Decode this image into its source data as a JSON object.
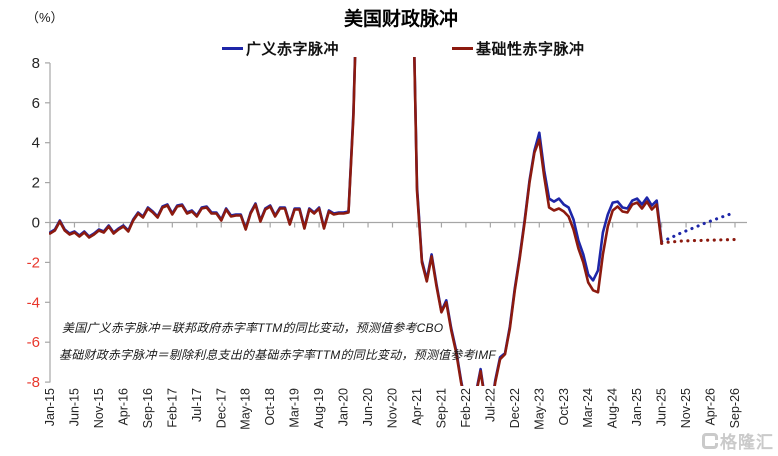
{
  "header": {
    "unit_label": "（%）",
    "title": "美国财政脉冲"
  },
  "legend": [
    {
      "label": "广义赤字脉冲",
      "color": "#1E26A8"
    },
    {
      "label": "基础性赤字脉冲",
      "color": "#8C1A0F"
    }
  ],
  "footnotes": [
    "美国广义赤字脉冲＝联邦政府赤字率TTM的同比变动，预测值参考CBO",
    "基础财政赤字脉冲＝剔除利息支出的基础赤字率TTM的同比变动，预测值参考IMF"
  ],
  "watermark": {
    "text": "格隆汇"
  },
  "chart_data": {
    "type": "line",
    "title": "美国财政脉冲",
    "unit": "%",
    "x_frequency": "monthly",
    "x_start": "Jan-15",
    "x_end": "Sep-26",
    "x_tick_labels": [
      "Jan-15",
      "Jun-15",
      "Nov-15",
      "Apr-16",
      "Sep-16",
      "Feb-17",
      "Jul-17",
      "Dec-17",
      "May-18",
      "Oct-18",
      "Mar-19",
      "Aug-19",
      "Jan-20",
      "Jun-20",
      "Nov-20",
      "Apr-21",
      "Sep-21",
      "Feb-22",
      "Jul-22",
      "Dec-22",
      "May-23",
      "Oct-23",
      "Mar-24",
      "Aug-24",
      "Jan-25",
      "Jun-25",
      "Nov-25",
      "Apr-26",
      "Sep-26"
    ],
    "ylim": [
      -8,
      8
    ],
    "y_ticks": [
      8,
      6,
      4,
      2,
      0,
      -2,
      -4,
      -6,
      -8
    ],
    "axis_color": "#A6A6A6",
    "tick_label_color": "#262626",
    "negative_tick_color": "#E8372C",
    "legend_position": "top",
    "grid": false,
    "clip_note": "values beyond ±8 run off the plot (COVID period)",
    "forecast_start_label": "Jun-25",
    "forecast_start_index": 125,
    "series": [
      {
        "name": "广义赤字脉冲",
        "color": "#1E26A8",
        "style": "solid, dotted forecast",
        "values": [
          -0.5,
          -0.35,
          0.1,
          -0.35,
          -0.55,
          -0.45,
          -0.65,
          -0.45,
          -0.7,
          -0.55,
          -0.35,
          -0.45,
          -0.15,
          -0.5,
          -0.3,
          -0.15,
          -0.4,
          0.15,
          0.5,
          0.3,
          0.75,
          0.55,
          0.3,
          0.8,
          0.9,
          0.45,
          0.85,
          0.9,
          0.5,
          0.6,
          0.35,
          0.75,
          0.8,
          0.5,
          0.5,
          0.15,
          0.7,
          0.35,
          0.4,
          0.4,
          -0.3,
          0.5,
          0.95,
          0.1,
          0.7,
          0.85,
          0.35,
          0.75,
          0.75,
          -0.05,
          0.7,
          0.7,
          -0.25,
          0.7,
          0.5,
          0.75,
          -0.25,
          0.6,
          0.45,
          0.5,
          0.5,
          0.55,
          5.5,
          14,
          14,
          13,
          13,
          12,
          12,
          12,
          12,
          12,
          12,
          12,
          14,
          1.8,
          -1.9,
          -2.85,
          -1.6,
          -3.1,
          -4.45,
          -3.9,
          -5.3,
          -6.4,
          -7.9,
          -9.2,
          -9.5,
          -8.6,
          -7.35,
          -9.0,
          -9.5,
          -7.9,
          -6.75,
          -6.55,
          -5.2,
          -3.3,
          -1.7,
          0.1,
          2.1,
          3.6,
          4.5,
          2.6,
          1.2,
          1.05,
          1.2,
          0.9,
          0.75,
          0.15,
          -0.9,
          -1.6,
          -2.6,
          -2.9,
          -2.4,
          -0.5,
          0.4,
          1.0,
          1.05,
          0.75,
          0.7,
          1.1,
          1.2,
          0.9,
          1.25,
          0.85,
          1.1,
          -0.95
        ],
        "forecast": [
          -0.95,
          -0.85,
          -0.75,
          -0.63,
          -0.52,
          -0.42,
          -0.32,
          -0.22,
          -0.12,
          -0.02,
          0.07,
          0.16,
          0.25,
          0.33,
          0.42,
          0.5
        ]
      },
      {
        "name": "基础性赤字脉冲",
        "color": "#8C1A0F",
        "style": "solid, dotted forecast",
        "values": [
          -0.55,
          -0.4,
          0.05,
          -0.4,
          -0.6,
          -0.5,
          -0.7,
          -0.5,
          -0.75,
          -0.6,
          -0.4,
          -0.5,
          -0.2,
          -0.55,
          -0.35,
          -0.2,
          -0.45,
          0.1,
          0.45,
          0.25,
          0.7,
          0.5,
          0.25,
          0.75,
          0.85,
          0.4,
          0.8,
          0.85,
          0.45,
          0.55,
          0.3,
          0.7,
          0.75,
          0.45,
          0.45,
          0.1,
          0.65,
          0.3,
          0.35,
          0.35,
          -0.35,
          0.45,
          0.9,
          0.05,
          0.65,
          0.8,
          0.3,
          0.7,
          0.7,
          -0.1,
          0.65,
          0.65,
          -0.3,
          0.65,
          0.45,
          0.7,
          -0.3,
          0.55,
          0.4,
          0.45,
          0.45,
          0.5,
          5.3,
          14,
          14,
          13,
          13,
          12,
          12,
          12,
          12,
          12,
          12,
          12,
          14,
          1.6,
          -2.0,
          -2.95,
          -1.7,
          -3.2,
          -4.5,
          -4.0,
          -5.4,
          -6.5,
          -8.0,
          -9.3,
          -9.6,
          -8.7,
          -7.45,
          -9.1,
          -9.6,
          -8.0,
          -6.85,
          -6.6,
          -5.3,
          -3.4,
          -1.8,
          0.0,
          2.0,
          3.5,
          4.15,
          2.3,
          0.75,
          0.6,
          0.7,
          0.55,
          0.3,
          -0.35,
          -1.3,
          -2.0,
          -3.0,
          -3.4,
          -3.5,
          -1.6,
          -0.2,
          0.6,
          0.8,
          0.55,
          0.5,
          0.9,
          1.0,
          0.7,
          1.05,
          0.65,
          0.9,
          -1.05
        ],
        "forecast": [
          -1.05,
          -1.0,
          -0.97,
          -0.95,
          -0.93,
          -0.92,
          -0.91,
          -0.9,
          -0.9,
          -0.89,
          -0.88,
          -0.88,
          -0.87,
          -0.86,
          -0.86,
          -0.85
        ]
      }
    ]
  }
}
